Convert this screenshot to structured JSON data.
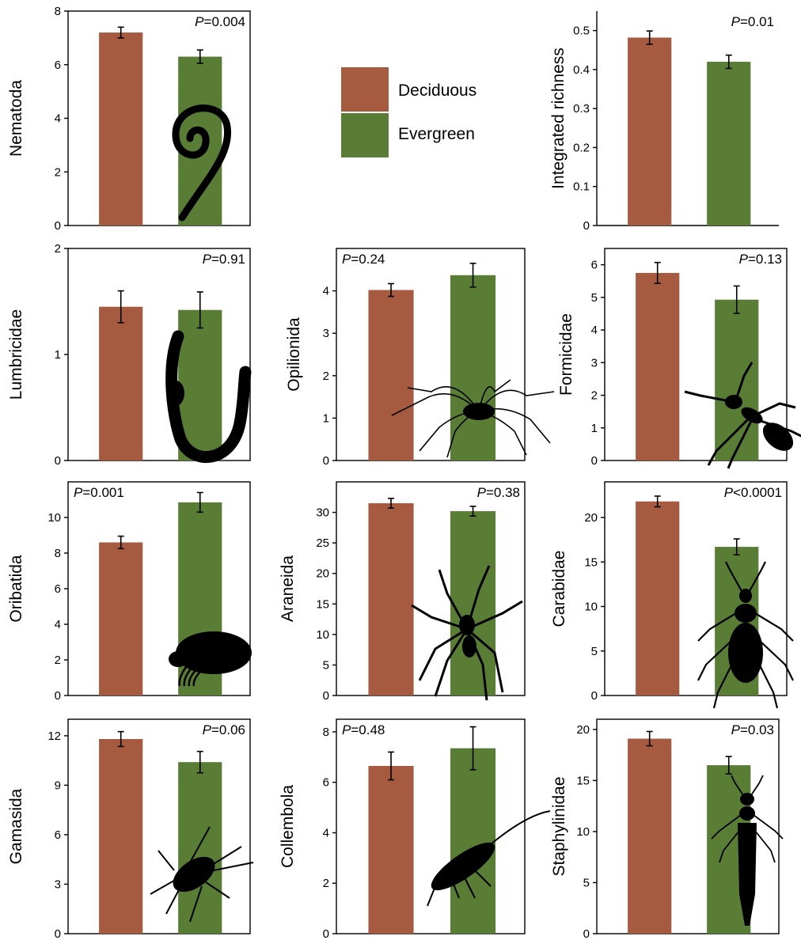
{
  "colors": {
    "deciduous": "#a65a3f",
    "evergreen": "#5a7d35"
  },
  "legend": {
    "items": [
      "Deciduous",
      "Evergreen"
    ]
  },
  "chart_data": [
    {
      "type": "bar",
      "ylabel": "Nematoda",
      "categories": [
        "Deciduous",
        "Evergreen"
      ],
      "values": [
        7.2,
        6.3
      ],
      "errors": [
        0.2,
        0.25
      ],
      "ylim": [
        0,
        8
      ],
      "yticks": [
        0,
        2,
        4,
        6,
        8
      ],
      "p_prefix": "P",
      "p_rest": "=0.004",
      "p_align": "right",
      "icon": "nematode-icon"
    },
    {
      "type": "bar",
      "ylabel": "Integrated richness",
      "categories": [
        "Deciduous",
        "Evergreen"
      ],
      "values": [
        0.482,
        0.42
      ],
      "errors": [
        0.017,
        0.017
      ],
      "ylim": [
        0,
        0.55
      ],
      "yticks": [
        0,
        0.1,
        0.2,
        0.3,
        0.4,
        0.5
      ],
      "p_prefix": "P",
      "p_rest": "=0.01",
      "p_align": "right",
      "icon": ""
    },
    {
      "type": "bar",
      "ylabel": "Lumbricidae",
      "categories": [
        "Deciduous",
        "Evergreen"
      ],
      "values": [
        1.45,
        1.42
      ],
      "errors": [
        0.15,
        0.17
      ],
      "ylim": [
        0,
        2
      ],
      "yticks": [
        0,
        1,
        2
      ],
      "p_prefix": "P",
      "p_rest": "=0.91",
      "p_align": "right",
      "icon": "earthworm-icon"
    },
    {
      "type": "bar",
      "ylabel": "Opilionida",
      "categories": [
        "Deciduous",
        "Evergreen"
      ],
      "values": [
        4.02,
        4.37
      ],
      "errors": [
        0.15,
        0.28
      ],
      "ylim": [
        0,
        5
      ],
      "yticks": [
        0,
        1,
        2,
        3,
        4
      ],
      "p_prefix": "P",
      "p_rest": "=0.24",
      "p_align": "left",
      "icon": "harvestman-icon"
    },
    {
      "type": "bar",
      "ylabel": "Formicidae",
      "categories": [
        "Deciduous",
        "Evergreen"
      ],
      "values": [
        5.75,
        4.93
      ],
      "errors": [
        0.32,
        0.42
      ],
      "ylim": [
        0,
        6.5
      ],
      "yticks": [
        0,
        1,
        2,
        3,
        4,
        5,
        6
      ],
      "p_prefix": "P",
      "p_rest": "=0.13",
      "p_align": "right",
      "icon": "ant-icon"
    },
    {
      "type": "bar",
      "ylabel": "Oribatida",
      "categories": [
        "Deciduous",
        "Evergreen"
      ],
      "values": [
        8.6,
        10.85
      ],
      "errors": [
        0.35,
        0.55
      ],
      "ylim": [
        0,
        12
      ],
      "yticks": [
        0,
        2,
        4,
        6,
        8,
        10
      ],
      "p_prefix": "P",
      "p_rest": "=0.001",
      "p_align": "left",
      "icon": "oribatid-mite-icon"
    },
    {
      "type": "bar",
      "ylabel": "Araneida",
      "categories": [
        "Deciduous",
        "Evergreen"
      ],
      "values": [
        31.5,
        30.2
      ],
      "errors": [
        0.8,
        0.8
      ],
      "ylim": [
        0,
        35
      ],
      "yticks": [
        0,
        5,
        10,
        15,
        20,
        25,
        30
      ],
      "p_prefix": "P",
      "p_rest": "=0.38",
      "p_align": "right",
      "icon": "spider-icon"
    },
    {
      "type": "bar",
      "ylabel": "Carabidae",
      "categories": [
        "Deciduous",
        "Evergreen"
      ],
      "values": [
        21.8,
        16.7
      ],
      "errors": [
        0.6,
        0.9
      ],
      "ylim": [
        0,
        24
      ],
      "yticks": [
        0,
        5,
        10,
        15,
        20
      ],
      "p_prefix": "P",
      "p_rest": "<0.0001",
      "p_align": "right",
      "icon": "ground-beetle-icon"
    },
    {
      "type": "bar",
      "ylabel": "Gamasida",
      "categories": [
        "Deciduous",
        "Evergreen"
      ],
      "values": [
        11.8,
        10.4
      ],
      "errors": [
        0.45,
        0.65
      ],
      "ylim": [
        0,
        13
      ],
      "yticks": [
        0,
        3,
        6,
        9,
        12
      ],
      "p_prefix": "P",
      "p_rest": "=0.06",
      "p_align": "right",
      "icon": "gamasid-mite-icon"
    },
    {
      "type": "bar",
      "ylabel": "Collembola",
      "categories": [
        "Deciduous",
        "Evergreen"
      ],
      "values": [
        6.65,
        7.35
      ],
      "errors": [
        0.55,
        0.85
      ],
      "ylim": [
        0,
        8.5
      ],
      "yticks": [
        0,
        2,
        4,
        6,
        8
      ],
      "p_prefix": "P",
      "p_rest": "=0.48",
      "p_align": "left",
      "icon": "springtail-icon"
    },
    {
      "type": "bar",
      "ylabel": "Staphylinidae",
      "categories": [
        "Deciduous",
        "Evergreen"
      ],
      "values": [
        19.1,
        16.5
      ],
      "errors": [
        0.7,
        0.85
      ],
      "ylim": [
        0,
        21
      ],
      "yticks": [
        0,
        5,
        10,
        15,
        20
      ],
      "p_prefix": "P",
      "p_rest": "=0.03",
      "p_align": "right",
      "icon": "rove-beetle-icon"
    }
  ]
}
